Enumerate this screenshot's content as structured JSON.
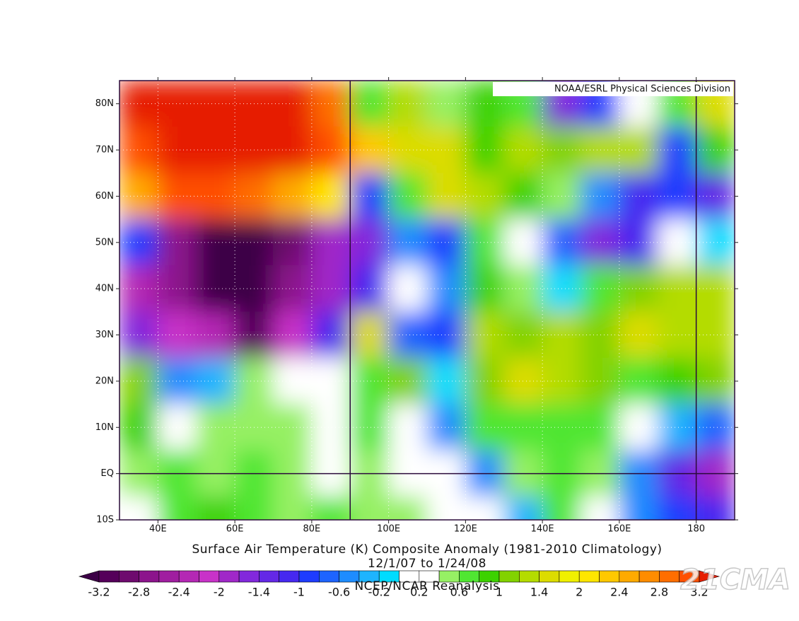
{
  "chart_data": {
    "type": "heatmap",
    "title": "Surface Air Temperature (K) Composite Anomaly (1981-2010 Climatology)",
    "subtitle": "12/1/07  to 1/24/08",
    "source": "NCEP/NCAR Reanalysis",
    "credit": "NOAA/ESRL Physical Sciences Division",
    "watermark": "21CMA",
    "xlim": [
      30,
      190
    ],
    "ylim": [
      -10,
      85
    ],
    "xticks": [
      {
        "value": 40,
        "label": "40E"
      },
      {
        "value": 60,
        "label": "60E"
      },
      {
        "value": 80,
        "label": "80E"
      },
      {
        "value": 100,
        "label": "100E"
      },
      {
        "value": 120,
        "label": "120E"
      },
      {
        "value": 140,
        "label": "140E"
      },
      {
        "value": 160,
        "label": "160E"
      },
      {
        "value": 180,
        "label": "180"
      }
    ],
    "yticks": [
      {
        "value": -10,
        "label": "10S"
      },
      {
        "value": 0,
        "label": "EQ"
      },
      {
        "value": 10,
        "label": "10N"
      },
      {
        "value": 20,
        "label": "20N"
      },
      {
        "value": 30,
        "label": "30N"
      },
      {
        "value": 40,
        "label": "40N"
      },
      {
        "value": 50,
        "label": "50N"
      },
      {
        "value": 60,
        "label": "60N"
      },
      {
        "value": 70,
        "label": "70N"
      },
      {
        "value": 80,
        "label": "80N"
      }
    ],
    "grid": true,
    "reference_lines": {
      "x": [
        90,
        180
      ],
      "y": [
        0
      ]
    },
    "lons": [
      35,
      45,
      55,
      65,
      75,
      85,
      95,
      105,
      115,
      125,
      135,
      145,
      155,
      165,
      175,
      185
    ],
    "lats": [
      80,
      70,
      60,
      50,
      40,
      30,
      20,
      10,
      0,
      -10
    ],
    "values": [
      [
        3.4,
        3.4,
        3.4,
        3.4,
        3.4,
        2.8,
        0.6,
        1.2,
        0.4,
        0.8,
        0.6,
        -1.6,
        -1.0,
        0.2,
        0.6,
        1.4
      ],
      [
        3.0,
        3.4,
        3.4,
        3.4,
        3.4,
        3.0,
        2.2,
        1.4,
        1.4,
        0.8,
        1.2,
        1.0,
        1.2,
        1.2,
        -1.0,
        0.8
      ],
      [
        2.4,
        3.0,
        3.0,
        2.8,
        2.4,
        2.0,
        -1.0,
        0.6,
        1.4,
        1.2,
        0.8,
        0.4,
        -0.6,
        -1.2,
        -1.0,
        -1.4
      ],
      [
        -1.0,
        -2.8,
        -3.4,
        -3.4,
        -3.0,
        -2.0,
        -1.6,
        -0.6,
        -1.0,
        0.6,
        0.2,
        -0.8,
        -1.6,
        -1.2,
        0.2,
        -0.2
      ],
      [
        -2.4,
        -2.6,
        -3.4,
        -3.4,
        -2.8,
        -2.0,
        -1.2,
        0.2,
        -0.6,
        0.8,
        0.4,
        -0.2,
        0.6,
        1.0,
        1.2,
        1.2
      ],
      [
        -1.6,
        -2.2,
        -2.4,
        -3.2,
        -2.2,
        -1.2,
        1.6,
        -0.8,
        -1.0,
        1.2,
        1.0,
        1.2,
        1.0,
        1.4,
        1.2,
        1.2
      ],
      [
        1.0,
        -0.6,
        -0.4,
        0.4,
        0.2,
        0.2,
        0.6,
        1.0,
        -0.2,
        1.0,
        1.4,
        1.2,
        1.0,
        0.6,
        0.8,
        1.0
      ],
      [
        0.8,
        0.2,
        0.4,
        0.4,
        0.4,
        0.2,
        0.6,
        0.0,
        -0.6,
        0.6,
        0.6,
        0.6,
        0.6,
        0.2,
        -0.4,
        -0.8
      ],
      [
        0.4,
        0.6,
        0.4,
        0.6,
        0.4,
        0.2,
        0.4,
        0.2,
        0.2,
        -0.6,
        0.4,
        0.6,
        0.4,
        -0.6,
        -1.4,
        -1.8
      ],
      [
        0.2,
        0.6,
        0.8,
        0.6,
        0.4,
        0.6,
        0.4,
        0.4,
        0.0,
        0.0,
        -0.4,
        0.6,
        0.2,
        -0.6,
        -1.0,
        -1.2
      ]
    ],
    "colorbar": {
      "levels": [
        -3.2,
        -2.8,
        -2.4,
        -2,
        -1.4,
        -1,
        -0.6,
        -0.2,
        0.2,
        0.6,
        1,
        1.4,
        2,
        2.4,
        2.8,
        3.2
      ],
      "colors": [
        "#3c0046",
        "#55005a",
        "#6e0a6e",
        "#8c148c",
        "#a01ea0",
        "#b428b4",
        "#c832c8",
        "#a028c8",
        "#8228dc",
        "#6428e6",
        "#4628f0",
        "#1e3cff",
        "#1e64ff",
        "#1e8cff",
        "#1eb4ff",
        "#00dcff",
        "#ffffff",
        "#ffffff",
        "#96f064",
        "#50e632",
        "#3cd200",
        "#82d200",
        "#b4dc00",
        "#dcdc00",
        "#f0f000",
        "#ffe600",
        "#ffc800",
        "#ffaa00",
        "#ff8c00",
        "#ff6e00",
        "#ff5000",
        "#e61e00"
      ]
    }
  }
}
